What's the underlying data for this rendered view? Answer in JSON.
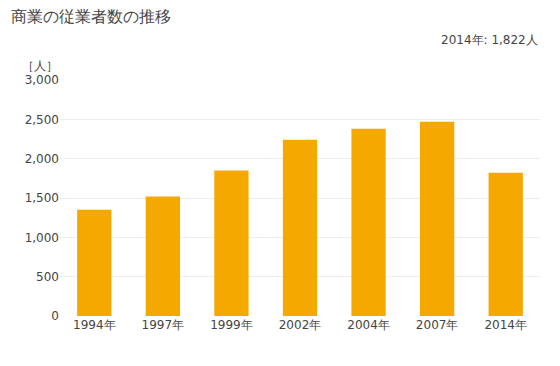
{
  "chart_data": {
    "type": "bar",
    "title": "商業の従業者数の推移",
    "ylabel": "［人］",
    "annotation": "2014年: 1,822人",
    "categories": [
      "1994年",
      "1997年",
      "1999年",
      "2002年",
      "2004年",
      "2007年",
      "2014年"
    ],
    "values": [
      1350,
      1520,
      1850,
      2240,
      2380,
      2470,
      1822
    ],
    "color": "#F5A800",
    "ylim": [
      0,
      3000
    ],
    "yticks": [
      0,
      500,
      {
        "value": 1000,
        "label": "1,000"
      },
      {
        "value": 1500,
        "label": "1,500"
      },
      {
        "value": 2000,
        "label": "2,000"
      },
      {
        "value": 2500,
        "label": "2,500"
      },
      {
        "value": 3000,
        "label": "3,000"
      }
    ],
    "grid": true
  }
}
